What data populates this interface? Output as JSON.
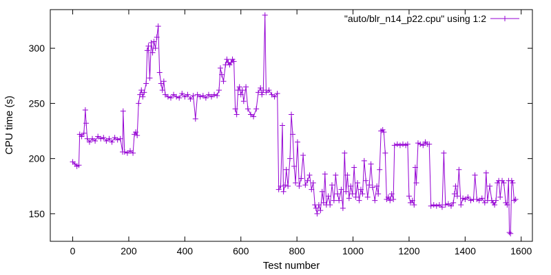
{
  "chart_data": {
    "type": "line",
    "xlabel": "Test number",
    "ylabel": "CPU time (s)",
    "xlim": [
      -80,
      1640
    ],
    "ylim": [
      125,
      335
    ],
    "xticks": [
      0,
      200,
      400,
      600,
      800,
      1000,
      1200,
      1400,
      1600
    ],
    "yticks": [
      150,
      200,
      250,
      300
    ],
    "xtick_labels": [
      "0",
      "200",
      "400",
      "600",
      "800",
      "1000",
      "1200",
      "1400",
      "1600"
    ],
    "ytick_labels": [
      "150",
      "200",
      "250",
      "300"
    ],
    "grid": false,
    "legend_position": "top-right",
    "series": [
      {
        "name": "\"auto/blr_n14_p22.cpu\" using 1:2",
        "color": "#9400d3",
        "marker": "plus",
        "points": [
          [
            0,
            197
          ],
          [
            8,
            195
          ],
          [
            15,
            193
          ],
          [
            22,
            194
          ],
          [
            25,
            222
          ],
          [
            32,
            220
          ],
          [
            40,
            223
          ],
          [
            45,
            244
          ],
          [
            48,
            232
          ],
          [
            52,
            218
          ],
          [
            60,
            215
          ],
          [
            70,
            218
          ],
          [
            80,
            216
          ],
          [
            90,
            220
          ],
          [
            100,
            218
          ],
          [
            110,
            219
          ],
          [
            120,
            216
          ],
          [
            130,
            218
          ],
          [
            140,
            215
          ],
          [
            150,
            219
          ],
          [
            160,
            217
          ],
          [
            170,
            218
          ],
          [
            178,
            206
          ],
          [
            180,
            243
          ],
          [
            185,
            206
          ],
          [
            195,
            205
          ],
          [
            205,
            207
          ],
          [
            215,
            205
          ],
          [
            220,
            222
          ],
          [
            225,
            224
          ],
          [
            230,
            221
          ],
          [
            235,
            250
          ],
          [
            240,
            258
          ],
          [
            245,
            262
          ],
          [
            250,
            256
          ],
          [
            255,
            260
          ],
          [
            262,
            268
          ],
          [
            266,
            298
          ],
          [
            270,
            302
          ],
          [
            275,
            273
          ],
          [
            280,
            305
          ],
          [
            285,
            296
          ],
          [
            290,
            306
          ],
          [
            295,
            300
          ],
          [
            300,
            310
          ],
          [
            305,
            320
          ],
          [
            310,
            278
          ],
          [
            315,
            268
          ],
          [
            320,
            262
          ],
          [
            325,
            270
          ],
          [
            330,
            258
          ],
          [
            340,
            256
          ],
          [
            350,
            255
          ],
          [
            360,
            258
          ],
          [
            370,
            256
          ],
          [
            380,
            255
          ],
          [
            390,
            259
          ],
          [
            400,
            256
          ],
          [
            410,
            258
          ],
          [
            420,
            254
          ],
          [
            430,
            257
          ],
          [
            438,
            236
          ],
          [
            445,
            258
          ],
          [
            455,
            256
          ],
          [
            465,
            257
          ],
          [
            475,
            255
          ],
          [
            485,
            258
          ],
          [
            495,
            256
          ],
          [
            505,
            258
          ],
          [
            515,
            257
          ],
          [
            522,
            262
          ],
          [
            527,
            282
          ],
          [
            532,
            276
          ],
          [
            538,
            270
          ],
          [
            545,
            285
          ],
          [
            550,
            290
          ],
          [
            555,
            287
          ],
          [
            560,
            285
          ],
          [
            565,
            287
          ],
          [
            570,
            290
          ],
          [
            575,
            288
          ],
          [
            580,
            245
          ],
          [
            585,
            240
          ],
          [
            590,
            262
          ],
          [
            595,
            265
          ],
          [
            600,
            258
          ],
          [
            605,
            262
          ],
          [
            610,
            252
          ],
          [
            618,
            265
          ],
          [
            625,
            245
          ],
          [
            635,
            240
          ],
          [
            645,
            238
          ],
          [
            655,
            245
          ],
          [
            662,
            260
          ],
          [
            670,
            264
          ],
          [
            675,
            258
          ],
          [
            680,
            262
          ],
          [
            686,
            330
          ],
          [
            690,
            260
          ],
          [
            700,
            262
          ],
          [
            710,
            258
          ],
          [
            720,
            256
          ],
          [
            730,
            259
          ],
          [
            735,
            172
          ],
          [
            742,
            175
          ],
          [
            748,
            230
          ],
          [
            752,
            170
          ],
          [
            758,
            176
          ],
          [
            762,
            190
          ],
          [
            768,
            175
          ],
          [
            775,
            200
          ],
          [
            780,
            240
          ],
          [
            785,
            222
          ],
          [
            790,
            193
          ],
          [
            795,
            178
          ],
          [
            802,
            215
          ],
          [
            808,
            175
          ],
          [
            815,
            182
          ],
          [
            822,
            203
          ],
          [
            830,
            176
          ],
          [
            838,
            180
          ],
          [
            845,
            185
          ],
          [
            852,
            172
          ],
          [
            858,
            178
          ],
          [
            864,
            158
          ],
          [
            868,
            155
          ],
          [
            872,
            150
          ],
          [
            878,
            158
          ],
          [
            884,
            153
          ],
          [
            890,
            170
          ],
          [
            895,
            160
          ],
          [
            900,
            186
          ],
          [
            905,
            158
          ],
          [
            912,
            166
          ],
          [
            918,
            158
          ],
          [
            925,
            176
          ],
          [
            932,
            162
          ],
          [
            938,
            185
          ],
          [
            945,
            168
          ],
          [
            950,
            162
          ],
          [
            958,
            172
          ],
          [
            964,
            155
          ],
          [
            970,
            205
          ],
          [
            975,
            170
          ],
          [
            980,
            185
          ],
          [
            986,
            164
          ],
          [
            992,
            175
          ],
          [
            998,
            168
          ],
          [
            1004,
            192
          ],
          [
            1010,
            165
          ],
          [
            1016,
            178
          ],
          [
            1022,
            162
          ],
          [
            1028,
            172
          ],
          [
            1034,
            168
          ],
          [
            1040,
            198
          ],
          [
            1046,
            180
          ],
          [
            1052,
            165
          ],
          [
            1058,
            176
          ],
          [
            1064,
            195
          ],
          [
            1070,
            174
          ],
          [
            1078,
            162
          ],
          [
            1085,
            175
          ],
          [
            1090,
            168
          ],
          [
            1095,
            190
          ],
          [
            1100,
            225
          ],
          [
            1106,
            226
          ],
          [
            1110,
            224
          ],
          [
            1115,
            205
          ],
          [
            1120,
            163
          ],
          [
            1126,
            165
          ],
          [
            1132,
            162
          ],
          [
            1138,
            168
          ],
          [
            1144,
            163
          ],
          [
            1148,
            212
          ],
          [
            1158,
            213
          ],
          [
            1168,
            212
          ],
          [
            1178,
            213
          ],
          [
            1188,
            212
          ],
          [
            1195,
            213
          ],
          [
            1200,
            166
          ],
          [
            1205,
            160
          ],
          [
            1212,
            162
          ],
          [
            1218,
            158
          ],
          [
            1222,
            192
          ],
          [
            1226,
            178
          ],
          [
            1232,
            214
          ],
          [
            1240,
            213
          ],
          [
            1250,
            212
          ],
          [
            1258,
            215
          ],
          [
            1265,
            213
          ],
          [
            1272,
            213
          ],
          [
            1278,
            157
          ],
          [
            1288,
            158
          ],
          [
            1298,
            157
          ],
          [
            1308,
            158
          ],
          [
            1318,
            156
          ],
          [
            1324,
            205
          ],
          [
            1330,
            158
          ],
          [
            1340,
            159
          ],
          [
            1350,
            157
          ],
          [
            1358,
            160
          ],
          [
            1362,
            168
          ],
          [
            1366,
            175
          ],
          [
            1372,
            166
          ],
          [
            1378,
            190
          ],
          [
            1385,
            158
          ],
          [
            1392,
            164
          ],
          [
            1400,
            163
          ],
          [
            1410,
            165
          ],
          [
            1420,
            162
          ],
          [
            1430,
            163
          ],
          [
            1435,
            185
          ],
          [
            1442,
            163
          ],
          [
            1450,
            162
          ],
          [
            1460,
            164
          ],
          [
            1470,
            160
          ],
          [
            1475,
            187
          ],
          [
            1480,
            162
          ],
          [
            1488,
            175
          ],
          [
            1495,
            162
          ],
          [
            1500,
            160
          ],
          [
            1505,
            158
          ],
          [
            1510,
            162
          ],
          [
            1515,
            178
          ],
          [
            1520,
            180
          ],
          [
            1525,
            165
          ],
          [
            1532,
            180
          ],
          [
            1538,
            178
          ],
          [
            1545,
            160
          ],
          [
            1550,
            158
          ],
          [
            1555,
            180
          ],
          [
            1558,
            133
          ],
          [
            1562,
            132
          ],
          [
            1566,
            180
          ],
          [
            1570,
            178
          ],
          [
            1575,
            162
          ],
          [
            1580,
            163
          ]
        ]
      }
    ]
  }
}
